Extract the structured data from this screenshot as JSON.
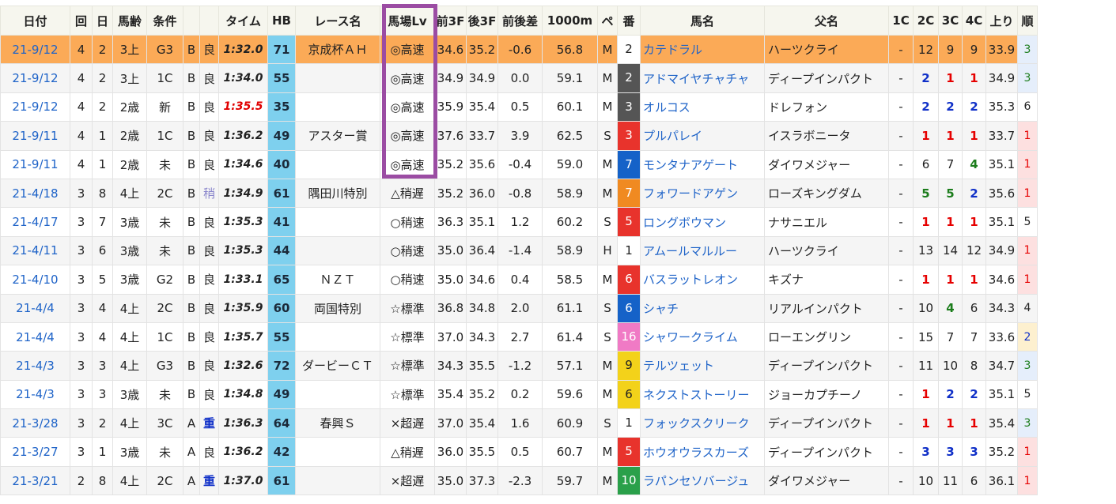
{
  "headers": [
    "日付",
    "回",
    "日",
    "馬齢",
    "条件",
    "",
    "",
    "タイム",
    "HB",
    "レース名",
    "馬場Lv",
    "前3F",
    "後3F",
    "前後差",
    "1000m",
    "ペ",
    "番",
    "馬名",
    "父名",
    "1C",
    "2C",
    "3C",
    "4C",
    "上り",
    "順"
  ],
  "number_colors": {
    "1": "#ffffff",
    "2": "#ffffff",
    "3": "#ffffff",
    "4": "#ffffff",
    "5": "#ffffff",
    "6": "#ffffff",
    "7": "#ffffff",
    "8": "#ffffff"
  },
  "rows": [
    {
      "date": "21-9/12",
      "kai": "4",
      "nichi": "2",
      "age": "3上",
      "cls": "G3",
      "course": "B",
      "cond": "良",
      "time": "1:32.0",
      "hb": "71",
      "race": "京成杯ＡＨ",
      "lv": "◎高速",
      "f3": "34.6",
      "l3": "35.2",
      "diff": "-0.6",
      "m1000": "56.8",
      "pace": "M",
      "no": "2",
      "horse": "カテドラル",
      "sire": "ハーツクライ",
      "c1": "-",
      "c2": "12",
      "c3": "9",
      "c4": "9",
      "agari": "33.9",
      "ord": "3"
    },
    {
      "date": "21-9/12",
      "kai": "4",
      "nichi": "2",
      "age": "3上",
      "cls": "1C",
      "course": "B",
      "cond": "良",
      "time": "1:34.0",
      "hb": "55",
      "race": "",
      "lv": "◎高速",
      "f3": "34.9",
      "l3": "34.9",
      "diff": "0.0",
      "m1000": "59.1",
      "pace": "M",
      "no": "2",
      "horse": "アドマイヤチャチャ",
      "sire": "ディープインパクト",
      "c1": "-",
      "c2": "2",
      "c3": "1",
      "c4": "1",
      "agari": "34.9",
      "ord": "3"
    },
    {
      "date": "21-9/12",
      "kai": "4",
      "nichi": "2",
      "age": "2歳",
      "cls": "新",
      "course": "B",
      "cond": "良",
      "time": "1:35.5",
      "hb": "35",
      "race": "",
      "lv": "◎高速",
      "f3": "35.9",
      "l3": "35.4",
      "diff": "0.5",
      "m1000": "60.1",
      "pace": "M",
      "no": "3",
      "horse": "オルコス",
      "sire": "ドレフォン",
      "c1": "-",
      "c2": "2",
      "c3": "2",
      "c4": "2",
      "agari": "35.3",
      "ord": "6"
    },
    {
      "date": "21-9/11",
      "kai": "4",
      "nichi": "1",
      "age": "2歳",
      "cls": "1C",
      "course": "B",
      "cond": "良",
      "time": "1:36.2",
      "hb": "49",
      "race": "アスター賞",
      "lv": "◎高速",
      "f3": "37.6",
      "l3": "33.7",
      "diff": "3.9",
      "m1000": "62.5",
      "pace": "S",
      "no": "3",
      "horse": "プルパレイ",
      "sire": "イスラボニータ",
      "c1": "-",
      "c2": "1",
      "c3": "1",
      "c4": "1",
      "agari": "33.7",
      "ord": "1"
    },
    {
      "date": "21-9/11",
      "kai": "4",
      "nichi": "1",
      "age": "2歳",
      "cls": "未",
      "course": "B",
      "cond": "良",
      "time": "1:34.6",
      "hb": "40",
      "race": "",
      "lv": "◎高速",
      "f3": "35.2",
      "l3": "35.6",
      "diff": "-0.4",
      "m1000": "59.0",
      "pace": "M",
      "no": "7",
      "horse": "モンタナアゲート",
      "sire": "ダイワメジャー",
      "c1": "-",
      "c2": "6",
      "c3": "7",
      "c4": "4",
      "agari": "35.1",
      "ord": "1"
    },
    {
      "date": "21-4/18",
      "kai": "3",
      "nichi": "8",
      "age": "4上",
      "cls": "2C",
      "course": "B",
      "cond": "稍",
      "time": "1:34.9",
      "hb": "61",
      "race": "隅田川特別",
      "lv": "△稍遅",
      "f3": "35.2",
      "l3": "36.0",
      "diff": "-0.8",
      "m1000": "58.9",
      "pace": "M",
      "no": "7",
      "horse": "フォワードアゲン",
      "sire": "ローズキングダム",
      "c1": "-",
      "c2": "5",
      "c3": "5",
      "c4": "2",
      "agari": "35.6",
      "ord": "1"
    },
    {
      "date": "21-4/17",
      "kai": "3",
      "nichi": "7",
      "age": "3歳",
      "cls": "未",
      "course": "B",
      "cond": "良",
      "time": "1:35.3",
      "hb": "41",
      "race": "",
      "lv": "○稍速",
      "f3": "36.3",
      "l3": "35.1",
      "diff": "1.2",
      "m1000": "60.2",
      "pace": "S",
      "no": "5",
      "horse": "ロングボウマン",
      "sire": "ナサニエル",
      "c1": "-",
      "c2": "1",
      "c3": "1",
      "c4": "1",
      "agari": "35.1",
      "ord": "5"
    },
    {
      "date": "21-4/11",
      "kai": "3",
      "nichi": "6",
      "age": "3歳",
      "cls": "未",
      "course": "B",
      "cond": "良",
      "time": "1:35.3",
      "hb": "44",
      "race": "",
      "lv": "○稍速",
      "f3": "35.0",
      "l3": "36.4",
      "diff": "-1.4",
      "m1000": "58.9",
      "pace": "H",
      "no": "1",
      "horse": "アムールマルルー",
      "sire": "ハーツクライ",
      "c1": "-",
      "c2": "13",
      "c3": "14",
      "c4": "12",
      "agari": "34.9",
      "ord": "1"
    },
    {
      "date": "21-4/10",
      "kai": "3",
      "nichi": "5",
      "age": "3歳",
      "cls": "G2",
      "course": "B",
      "cond": "良",
      "time": "1:33.1",
      "hb": "65",
      "race": "ＮＺＴ",
      "lv": "○稍速",
      "f3": "35.0",
      "l3": "34.6",
      "diff": "0.4",
      "m1000": "58.5",
      "pace": "M",
      "no": "6",
      "horse": "バスラットレオン",
      "sire": "キズナ",
      "c1": "-",
      "c2": "1",
      "c3": "1",
      "c4": "1",
      "agari": "34.6",
      "ord": "1"
    },
    {
      "date": "21-4/4",
      "kai": "3",
      "nichi": "4",
      "age": "4上",
      "cls": "2C",
      "course": "B",
      "cond": "良",
      "time": "1:35.9",
      "hb": "60",
      "race": "両国特別",
      "lv": "☆標準",
      "f3": "36.8",
      "l3": "34.8",
      "diff": "2.0",
      "m1000": "61.1",
      "pace": "S",
      "no": "6",
      "horse": "シャチ",
      "sire": "リアルインパクト",
      "c1": "-",
      "c2": "10",
      "c3": "4",
      "c4": "6",
      "agari": "34.3",
      "ord": "4"
    },
    {
      "date": "21-4/4",
      "kai": "3",
      "nichi": "4",
      "age": "4上",
      "cls": "1C",
      "course": "B",
      "cond": "良",
      "time": "1:35.7",
      "hb": "55",
      "race": "",
      "lv": "☆標準",
      "f3": "37.0",
      "l3": "34.3",
      "diff": "2.7",
      "m1000": "61.4",
      "pace": "S",
      "no": "16",
      "horse": "シャワークライム",
      "sire": "ローエングリン",
      "c1": "-",
      "c2": "15",
      "c3": "7",
      "c4": "7",
      "agari": "33.6",
      "ord": "2"
    },
    {
      "date": "21-4/3",
      "kai": "3",
      "nichi": "3",
      "age": "4上",
      "cls": "G3",
      "course": "B",
      "cond": "良",
      "time": "1:32.6",
      "hb": "72",
      "race": "ダービーＣＴ",
      "lv": "☆標準",
      "f3": "34.3",
      "l3": "35.5",
      "diff": "-1.2",
      "m1000": "57.1",
      "pace": "M",
      "no": "9",
      "horse": "テルツェット",
      "sire": "ディープインパクト",
      "c1": "-",
      "c2": "11",
      "c3": "10",
      "c4": "8",
      "agari": "34.7",
      "ord": "3"
    },
    {
      "date": "21-4/3",
      "kai": "3",
      "nichi": "3",
      "age": "3歳",
      "cls": "未",
      "course": "B",
      "cond": "良",
      "time": "1:34.8",
      "hb": "49",
      "race": "",
      "lv": "☆標準",
      "f3": "35.4",
      "l3": "35.2",
      "diff": "0.2",
      "m1000": "59.6",
      "pace": "M",
      "no": "6",
      "horse": "ネクストストーリー",
      "sire": "ジョーカプチーノ",
      "c1": "-",
      "c2": "1",
      "c3": "2",
      "c4": "2",
      "agari": "35.1",
      "ord": "5"
    },
    {
      "date": "21-3/28",
      "kai": "3",
      "nichi": "2",
      "age": "4上",
      "cls": "3C",
      "course": "A",
      "cond": "重",
      "time": "1:36.3",
      "hb": "64",
      "race": "春興Ｓ",
      "lv": "×超遅",
      "f3": "37.0",
      "l3": "35.4",
      "diff": "1.6",
      "m1000": "60.9",
      "pace": "S",
      "no": "1",
      "horse": "フォックスクリーク",
      "sire": "ディープインパクト",
      "c1": "-",
      "c2": "1",
      "c3": "1",
      "c4": "1",
      "agari": "35.4",
      "ord": "3"
    },
    {
      "date": "21-3/27",
      "kai": "3",
      "nichi": "1",
      "age": "3歳",
      "cls": "未",
      "course": "A",
      "cond": "良",
      "time": "1:36.2",
      "hb": "42",
      "race": "",
      "lv": "△稍遅",
      "f3": "36.0",
      "l3": "35.5",
      "diff": "0.5",
      "m1000": "60.7",
      "pace": "M",
      "no": "5",
      "horse": "ホウオウラスカーズ",
      "sire": "ディープインパクト",
      "c1": "-",
      "c2": "3",
      "c3": "3",
      "c4": "3",
      "agari": "35.2",
      "ord": "1"
    },
    {
      "date": "21-3/21",
      "kai": "2",
      "nichi": "8",
      "age": "4上",
      "cls": "2C",
      "course": "A",
      "cond": "重",
      "time": "1:37.0",
      "hb": "61",
      "race": "",
      "lv": "×超遅",
      "f3": "35.0",
      "l3": "37.3",
      "diff": "-2.3",
      "m1000": "59.7",
      "pace": "M",
      "no": "10",
      "horse": "ラパンセソバージュ",
      "sire": "ダイワメジャー",
      "c1": "-",
      "c2": "10",
      "c3": "11",
      "c4": "6",
      "agari": "36.1",
      "ord": "1"
    }
  ],
  "colors": {
    "highlight_row": "#fbaa57",
    "hb_cell": "#7ed0ee",
    "box": "#9b4ca3",
    "link": "#1e63c8"
  }
}
